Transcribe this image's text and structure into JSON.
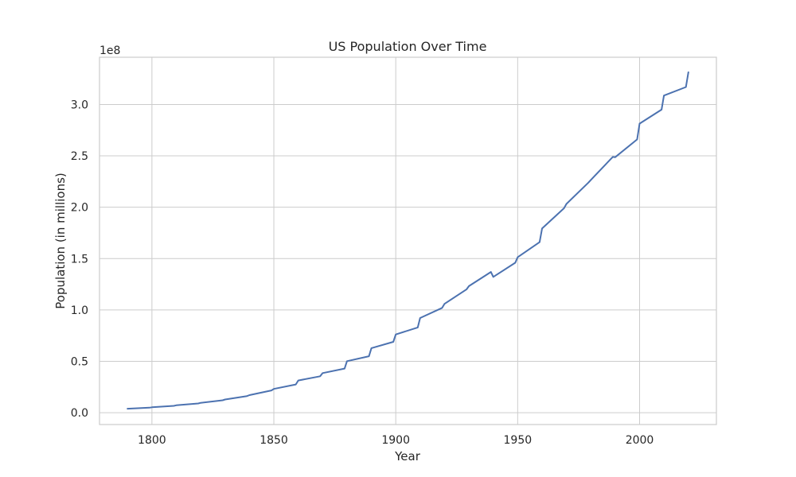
{
  "chart_data": {
    "type": "line",
    "title": "US Population Over Time",
    "xlabel": "Year",
    "ylabel": "Population (in millions)",
    "offset_label": "1e8",
    "xlim": [
      1778.5,
      2031.5
    ],
    "ylim": [
      -11500000,
      346000000
    ],
    "x_ticks": [
      1800,
      1850,
      1900,
      1950,
      2000
    ],
    "y_ticks": [
      0,
      50000000,
      100000000,
      150000000,
      200000000,
      250000000,
      300000000
    ],
    "y_tick_labels": [
      "0.0",
      "0.5",
      "1.0",
      "1.5",
      "2.0",
      "2.5",
      "3.0"
    ],
    "grid": true,
    "line_color": "#4c72b0",
    "series": [
      {
        "x": [
          1790,
          1799,
          1800,
          1809,
          1810,
          1819,
          1820,
          1829,
          1830,
          1839,
          1840,
          1849,
          1850,
          1859,
          1860,
          1869,
          1870,
          1879,
          1880,
          1889,
          1890,
          1899,
          1900,
          1909,
          1910,
          1919,
          1920,
          1929,
          1930,
          1939,
          1940,
          1949,
          1950,
          1959,
          1960,
          1969,
          1970,
          1979,
          1980,
          1989,
          1990,
          1999,
          2000,
          2009,
          2010,
          2019,
          2020
        ],
        "y": [
          3900000,
          4900000,
          5300000,
          6700000,
          7200000,
          9000000,
          9600000,
          12100000,
          12900000,
          16200000,
          17100000,
          21700000,
          23200000,
          27500000,
          31400000,
          35500000,
          38600000,
          43000000,
          50200000,
          55000000,
          62900000,
          69000000,
          76200000,
          83000000,
          92200000,
          102000000,
          106000000,
          120000000,
          123200000,
          137000000,
          132200000,
          146000000,
          151300000,
          166000000,
          179300000,
          199000000,
          203200000,
          224000000,
          226500000,
          249000000,
          248700000,
          266000000,
          281400000,
          295000000,
          308700000,
          317000000,
          331400000
        ]
      }
    ]
  }
}
